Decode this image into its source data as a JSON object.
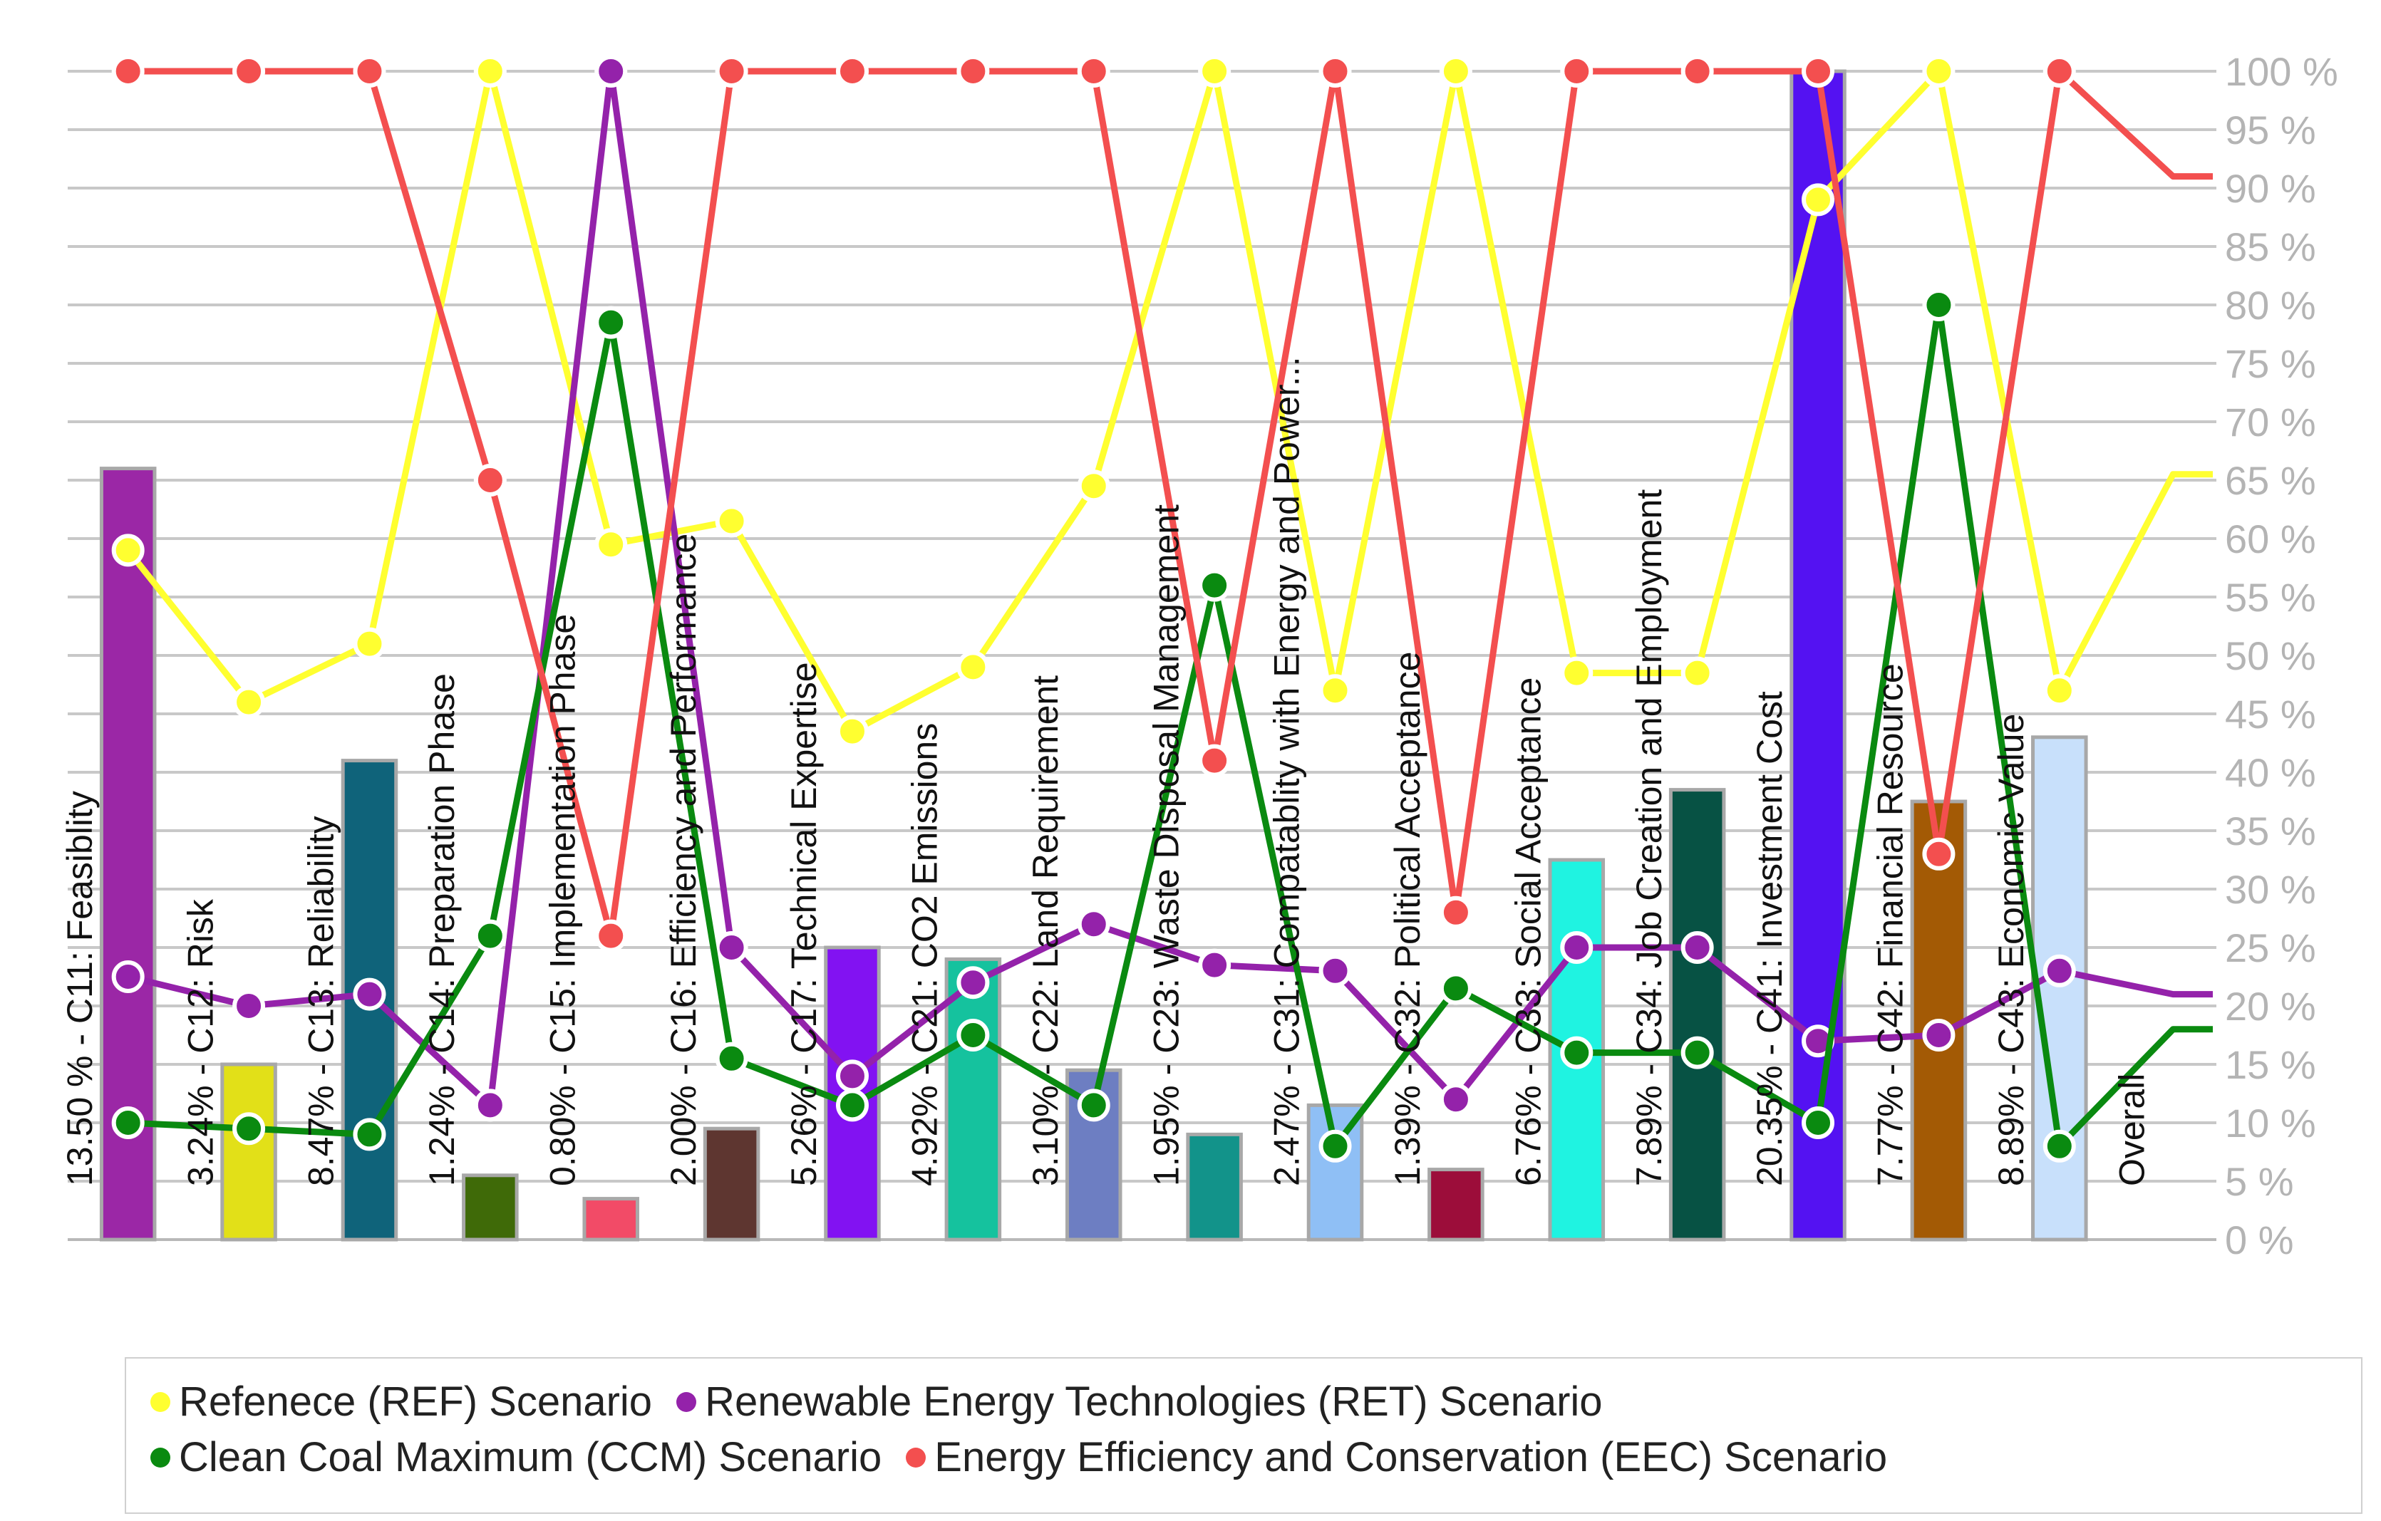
{
  "chart_data": {
    "type": "bar",
    "categories": [
      "C11: Feasiblity",
      "C12: Risk",
      "C13: Reliability",
      "C14: Preparation Phase",
      "C15: Implementation Phase",
      "C16: Efficiency and Performance",
      "C17: Technical Expertise",
      "C21: CO2 Emissions",
      "C22: Land Requirement",
      "C23: Waste Disposal Management",
      "C31: Compatablity with Energy and Power...",
      "C32: Political Acceptance",
      "C33: Social Acceptance",
      "C34: Job Creation and Employment",
      "C41: Investment Cost",
      "C42: Financial Resource",
      "C43: Economic Value",
      "Overall"
    ],
    "bar_labels": [
      "13.50 %",
      "3.24%",
      "8.47%",
      "1.24%",
      "0.80%",
      "2.00%",
      "5.26%",
      "4.92%",
      "3.10%",
      "1.95%",
      "2.47%",
      "1.39%",
      "6.76%",
      "7.89%",
      "20.35%",
      "7.77%",
      "8.89%",
      ""
    ],
    "bar_values": [
      66,
      15,
      41,
      5.5,
      3.5,
      9.5,
      25,
      24,
      14.5,
      9,
      11.5,
      6,
      32.5,
      38.5,
      100,
      37.5,
      43
    ],
    "bar_colors": [
      "#9b27a6",
      "#e2e018",
      "#0f637a",
      "#3f6a08",
      "#f24b67",
      "#5e3630",
      "#8212f2",
      "#15c29e",
      "#6d7ec2",
      "#12938a",
      "#8fbff5",
      "#9c0d3a",
      "#1ff3e1",
      "#075244",
      "#5412f2",
      "#a35a05",
      "#c8e0fb"
    ],
    "series": [
      {
        "name": "Refenece (REF) Scenario",
        "color": "#ffff30",
        "values": [
          59,
          46,
          51,
          100,
          59.5,
          61.5,
          43.5,
          49,
          64.5,
          100,
          47,
          100,
          48.5,
          48.5,
          89,
          100,
          47,
          65.5
        ]
      },
      {
        "name": "Renewable Energy Technologies (RET) Scenario",
        "color": "#9422aa",
        "values": [
          22.5,
          20,
          21,
          11.5,
          100,
          25,
          14,
          22,
          27,
          23.5,
          23,
          12,
          25,
          25,
          17,
          17.5,
          23,
          21
        ]
      },
      {
        "name": "Clean Coal Maximum (CCM) Scenario",
        "color": "#0a8a10",
        "values": [
          10,
          9.5,
          9,
          26,
          78.5,
          15.5,
          11.5,
          17.5,
          11.5,
          56,
          8,
          21.5,
          16,
          16,
          10,
          80,
          8,
          18
        ]
      },
      {
        "name": "Energy Efficiency and Conservation (EEC) Scenario",
        "color": "#f34f4f",
        "values": [
          100,
          100,
          100,
          65,
          26,
          100,
          100,
          100,
          100,
          41,
          100,
          28,
          100,
          100,
          100,
          33,
          100,
          91
        ]
      }
    ],
    "y_ticks": [
      "0 %",
      "5 %",
      "10 %",
      "15 %",
      "20 %",
      "25 %",
      "30 %",
      "35 %",
      "40 %",
      "45 %",
      "50 %",
      "55 %",
      "60 %",
      "65 %",
      "70 %",
      "75 %",
      "80 %",
      "85 %",
      "90 %",
      "95 %",
      "100 %"
    ],
    "ylim": [
      0,
      100
    ],
    "grid": true,
    "legend_position": "bottom"
  }
}
